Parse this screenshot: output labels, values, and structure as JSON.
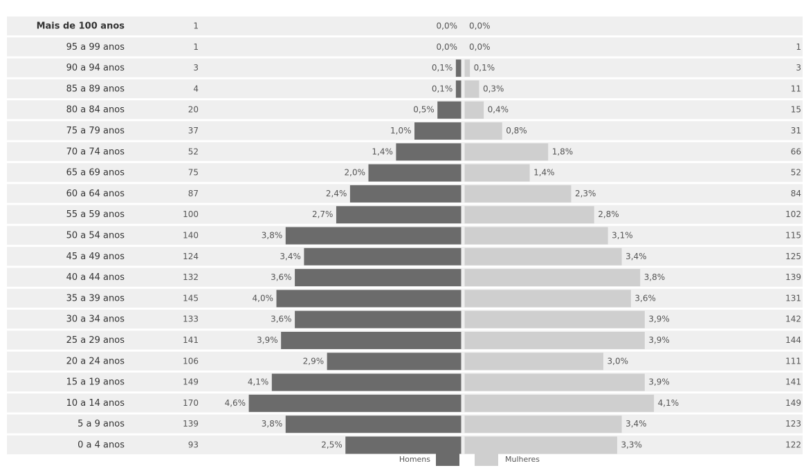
{
  "chart_data": {
    "type": "pyramid",
    "categories": [
      "Mais de 100 anos",
      "95 a 99 anos",
      "90 a 94 anos",
      "85 a 89 anos",
      "80 a 84 anos",
      "75 a 79 anos",
      "70 a 74 anos",
      "65 a 69 anos",
      "60 a 64 anos",
      "55 a 59 anos",
      "50 a 54 anos",
      "45 a 49 anos",
      "40 a 44 anos",
      "35 a 39 anos",
      "30 a 34 anos",
      "25 a 29 anos",
      "20 a 24 anos",
      "15 a 19 anos",
      "10 a 14 anos",
      "5 a 9 anos",
      "0 a 4 anos"
    ],
    "series": [
      {
        "name": "Homens",
        "color": "#6b6b6b",
        "values": [
          0.0,
          0.0,
          0.1,
          0.1,
          0.5,
          1.0,
          1.4,
          2.0,
          2.4,
          2.7,
          3.8,
          3.4,
          3.6,
          4.0,
          3.6,
          3.9,
          2.9,
          4.1,
          4.6,
          3.8,
          2.5
        ],
        "value_labels": [
          "0,0%",
          "0,0%",
          "0,1%",
          "0,1%",
          "0,5%",
          "1,0%",
          "1,4%",
          "2,0%",
          "2,4%",
          "2,7%",
          "3,8%",
          "3,4%",
          "3,6%",
          "4,0%",
          "3,6%",
          "3,9%",
          "2,9%",
          "4,1%",
          "4,6%",
          "3,8%",
          "2,5%"
        ],
        "counts": [
          1,
          1,
          3,
          4,
          20,
          37,
          52,
          75,
          87,
          100,
          140,
          124,
          132,
          145,
          133,
          141,
          106,
          149,
          170,
          139,
          93
        ]
      },
      {
        "name": "Mulheres",
        "color": "#cfcfcf",
        "values": [
          0.0,
          0.0,
          0.1,
          0.3,
          0.4,
          0.8,
          1.8,
          1.4,
          2.3,
          2.8,
          3.1,
          3.4,
          3.8,
          3.6,
          3.9,
          3.9,
          3.0,
          3.9,
          4.1,
          3.4,
          3.3
        ],
        "value_labels": [
          "0,0%",
          "0,0%",
          "0,1%",
          "0,3%",
          "0,4%",
          "0,8%",
          "1,8%",
          "1,4%",
          "2,3%",
          "2,8%",
          "3,1%",
          "3,4%",
          "3,8%",
          "3,6%",
          "3,9%",
          "3,9%",
          "3,0%",
          "3,9%",
          "4,1%",
          "3,4%",
          "3,3%"
        ],
        "counts": [
          null,
          1,
          3,
          11,
          15,
          31,
          66,
          52,
          84,
          102,
          115,
          125,
          139,
          131,
          142,
          144,
          111,
          141,
          149,
          123,
          122
        ]
      }
    ]
  }
}
